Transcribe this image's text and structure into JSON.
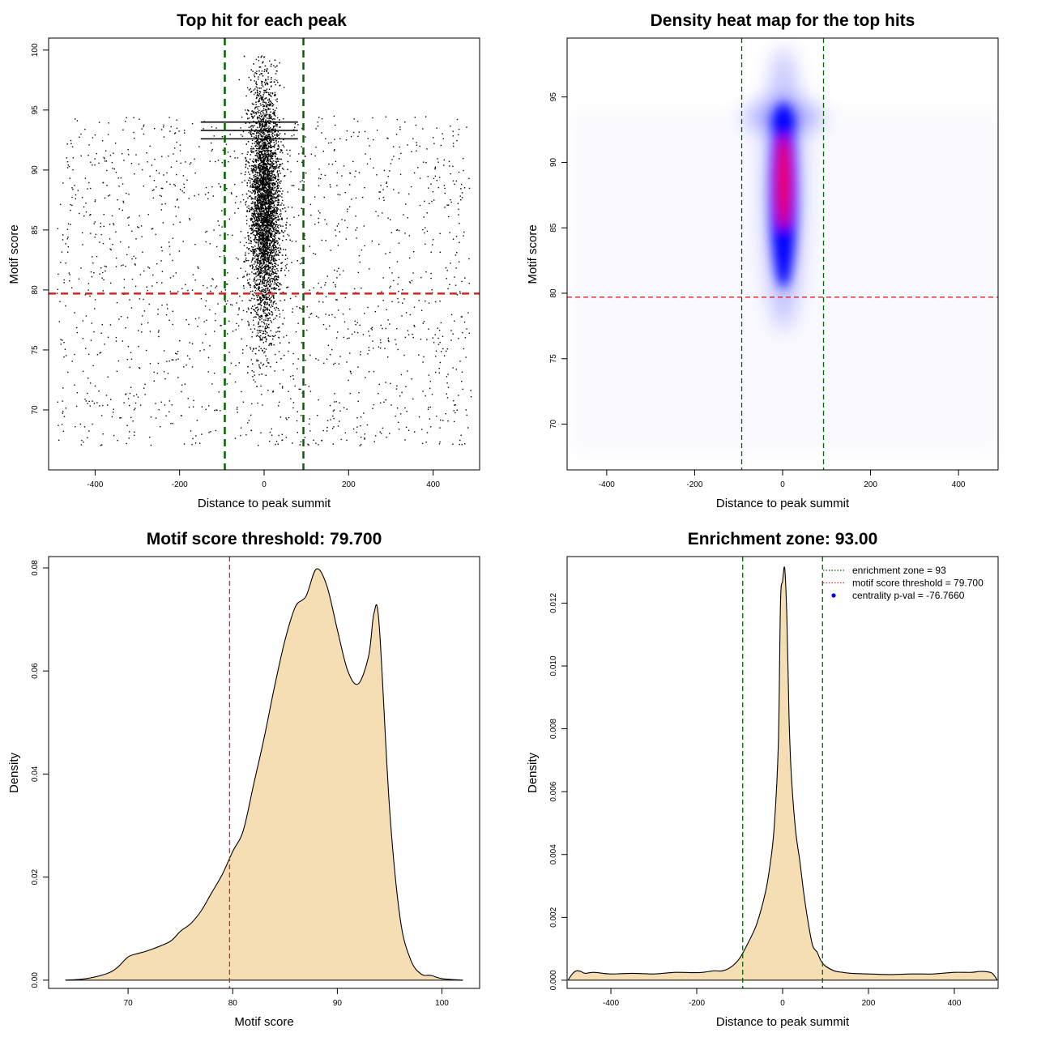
{
  "figure": {
    "background": "#ffffff"
  },
  "chart_data": [
    {
      "id": "scatter",
      "type": "scatter",
      "title": "Top hit for each peak",
      "xlabel": "Distance to peak summit",
      "ylabel": "Motif score",
      "xlim": [
        -510,
        510
      ],
      "ylim": [
        65,
        101
      ],
      "xticks": [
        -400,
        -200,
        0,
        200,
        400
      ],
      "yticks": [
        70,
        75,
        80,
        85,
        90,
        95,
        100
      ],
      "vlines": [
        -93,
        93
      ],
      "hline": 79.7,
      "point_color": "#000000",
      "vline_color": "#006400",
      "hline_color": "#dd2222",
      "distribution": {
        "central_points": 5200,
        "central_mean": 2,
        "central_sd": 18,
        "central_score_mean": 87,
        "central_score_sd": 5,
        "background_points": 1600,
        "background_range": [
          -490,
          490
        ],
        "background_score_range": [
          67,
          94.5
        ],
        "horizontal_bands": [
          94.0,
          93.3,
          92.6
        ]
      }
    },
    {
      "id": "heatmap",
      "type": "heatmap",
      "title": "Density heat map for the top hits",
      "xlabel": "Distance to peak summit",
      "ylabel": "Motif score",
      "xlim": [
        -490,
        490
      ],
      "ylim": [
        66.5,
        99.5
      ],
      "xticks": [
        -400,
        -200,
        0,
        200,
        400
      ],
      "yticks": [
        70,
        75,
        80,
        85,
        90,
        95
      ],
      "vlines": [
        -93,
        93
      ],
      "hline": 79.7,
      "colors": [
        "#ffffff",
        "#0000ff",
        "#ff0000"
      ],
      "hotspot": {
        "x": 2,
        "y": 88.5
      },
      "vline_color": "#006400",
      "hline_color": "#dd2222"
    },
    {
      "id": "score-density",
      "type": "area",
      "title": "Motif score threshold: 79.700",
      "xlabel": "Motif score",
      "ylabel": "Density",
      "xlim": [
        62.4,
        103.6
      ],
      "ylim": [
        -0.0016,
        0.0822
      ],
      "xticks": [
        70,
        80,
        90,
        100
      ],
      "yticks": [
        0.0,
        0.02,
        0.04,
        0.06,
        0.08
      ],
      "ytick_labels": [
        "0.00",
        "0.02",
        "0.04",
        "0.06",
        "0.08"
      ],
      "x": [
        64,
        66,
        68,
        69,
        70,
        71,
        72,
        74,
        75,
        76,
        77,
        78,
        79,
        80,
        81,
        82,
        83,
        84,
        85,
        86,
        87,
        88,
        89,
        90,
        91,
        92,
        93,
        93.5,
        94,
        95,
        96,
        97,
        98,
        99,
        100,
        102
      ],
      "values": [
        0,
        0.0003,
        0.0013,
        0.0025,
        0.0045,
        0.0052,
        0.0058,
        0.0075,
        0.0095,
        0.011,
        0.0135,
        0.017,
        0.0205,
        0.025,
        0.029,
        0.038,
        0.047,
        0.057,
        0.066,
        0.0725,
        0.0745,
        0.0798,
        0.0765,
        0.068,
        0.06,
        0.0575,
        0.063,
        0.0712,
        0.069,
        0.033,
        0.012,
        0.004,
        0.0012,
        0.0009,
        0.0003,
        0
      ],
      "fill": "#f5deb3",
      "vline": 79.7,
      "vline_color": "#dd2222"
    },
    {
      "id": "position-density",
      "type": "area",
      "title": "Enrichment zone: 93.00",
      "xlabel": "Distance to peak summit",
      "ylabel": "Density",
      "xlim": [
        -502,
        502
      ],
      "ylim": [
        -0.00026,
        0.01348
      ],
      "xticks": [
        -400,
        -200,
        0,
        200,
        400
      ],
      "yticks": [
        0.0,
        0.002,
        0.004,
        0.006,
        0.008,
        0.01,
        0.012
      ],
      "ytick_labels": [
        "0.000",
        "0.002",
        "0.004",
        "0.006",
        "0.008",
        "0.010",
        "0.012"
      ],
      "x": [
        -500,
        -490,
        -480,
        -470,
        -460,
        -440,
        -400,
        -350,
        -300,
        -250,
        -200,
        -180,
        -160,
        -140,
        -120,
        -100,
        -80,
        -60,
        -40,
        -30,
        -20,
        -10,
        -5,
        0,
        5,
        10,
        15,
        20,
        30,
        40,
        50,
        60,
        70,
        80,
        90,
        100,
        120,
        140,
        160,
        200,
        250,
        300,
        350,
        400,
        440,
        460,
        480,
        490,
        500
      ],
      "values": [
        0,
        0.0002,
        0.0003,
        0.00028,
        0.00022,
        0.00025,
        0.0002,
        0.00022,
        0.0002,
        0.00025,
        0.00024,
        0.00026,
        0.0003,
        0.0003,
        0.00042,
        0.0007,
        0.0012,
        0.0018,
        0.0028,
        0.0036,
        0.0048,
        0.0075,
        0.012,
        0.0127,
        0.0131,
        0.0115,
        0.0084,
        0.0066,
        0.0048,
        0.0038,
        0.0027,
        0.0018,
        0.0011,
        0.0009,
        0.0006,
        0.00045,
        0.0003,
        0.00025,
        0.00022,
        0.0002,
        0.00018,
        0.0002,
        0.0002,
        0.00025,
        0.00025,
        0.00028,
        0.00026,
        0.0002,
        0
      ],
      "fill": "#f5deb3",
      "vlines": [
        -93,
        93
      ],
      "vline_color": "#006400",
      "legend": [
        {
          "label": "enrichment zone = 93",
          "color": "#006400",
          "style": "dotted"
        },
        {
          "label": "motif score threshold = 79.700",
          "color": "#dd2222",
          "style": "dotted"
        },
        {
          "label": "centrality p-val = -76.7660",
          "color": "#0000ff",
          "style": "point"
        }
      ]
    }
  ]
}
